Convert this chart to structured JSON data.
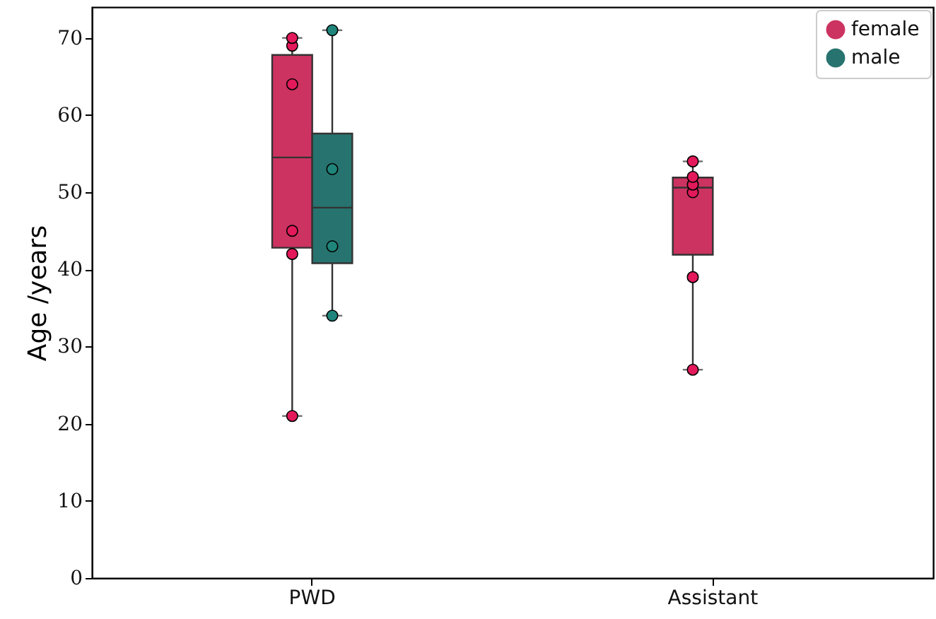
{
  "chart_data": {
    "type": "box",
    "ylabel": "Age /years",
    "categories": [
      "PWD",
      "Assistant"
    ],
    "ylim": [
      0,
      74
    ],
    "yticks": [
      0,
      10,
      20,
      30,
      40,
      50,
      60,
      70
    ],
    "grid": false,
    "legend": "top right",
    "series": [
      {
        "name": "female",
        "color": "#cc3360",
        "boxes": [
          {
            "low": 21,
            "q1": 42.8,
            "median": 54.5,
            "q3": 67.8,
            "high": 70
          },
          {
            "low": 27,
            "q1": 41.9,
            "median": 50.6,
            "q3": 51.9,
            "high": 54
          }
        ]
      },
      {
        "name": "male",
        "color": "#27736f",
        "boxes": [
          {
            "low": 34,
            "q1": 40.8,
            "median": 48,
            "q3": 57.6,
            "high": 71
          },
          null
        ]
      },
      {
        "type": "scatter",
        "color": "#e3195b",
        "marker": "circle",
        "x": [
          "PWD",
          "PWD",
          "PWD",
          "PWD",
          "PWD",
          "PWD",
          "Assistant",
          "Assistant",
          "Assistant",
          "Assistant",
          "Assistant",
          "Assistant"
        ],
        "values": [
          45,
          42,
          69,
          64,
          70,
          21,
          54,
          50,
          51,
          52,
          39,
          27
        ]
      },
      {
        "type": "scatter",
        "color": "#1f857b",
        "marker": "circle",
        "x": [
          "PWD",
          "PWD",
          "PWD",
          "PWD"
        ],
        "values": [
          71,
          53,
          43,
          34
        ]
      }
    ]
  }
}
